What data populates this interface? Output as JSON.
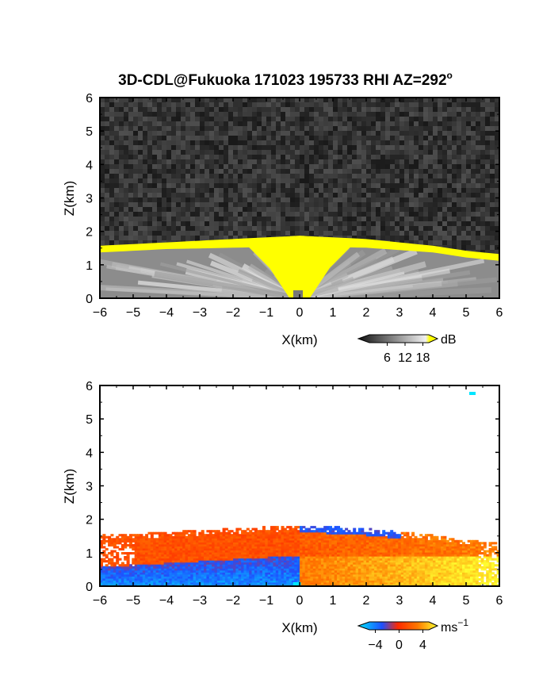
{
  "figure": {
    "title": "3D-CDL@Fukuoka 171023 195733 RHI AZ=292",
    "title_superscript": "o"
  },
  "chart_data": [
    {
      "type": "heatmap",
      "quantity": "backscatter intensity",
      "xlabel": "X(km)",
      "ylabel": "Z(km)",
      "xlim": [
        -6,
        6
      ],
      "ylim": [
        0,
        6
      ],
      "xticks": [
        -6,
        -5,
        -4,
        -3,
        -2,
        -1,
        0,
        1,
        2,
        3,
        4,
        5,
        6
      ],
      "yticks": [
        0,
        1,
        2,
        3,
        4,
        5,
        6
      ],
      "boundary_layer_top_km": [
        {
          "x": -6,
          "z": 1.55
        },
        {
          "x": -5,
          "z": 1.6
        },
        {
          "x": -4,
          "z": 1.65
        },
        {
          "x": -3,
          "z": 1.7
        },
        {
          "x": -2,
          "z": 1.75
        },
        {
          "x": -1,
          "z": 1.8
        },
        {
          "x": 0,
          "z": 1.85
        },
        {
          "x": 1,
          "z": 1.8
        },
        {
          "x": 2,
          "z": 1.75
        },
        {
          "x": 3,
          "z": 1.65
        },
        {
          "x": 4,
          "z": 1.55
        },
        {
          "x": 5,
          "z": 1.4
        },
        {
          "x": 6,
          "z": 1.3
        }
      ],
      "colorbar": {
        "unit": "dB",
        "ticks": [
          "6",
          "12",
          "18"
        ],
        "range": [
          0,
          20
        ],
        "colors": [
          "#111111",
          "#ffffff",
          "#ffff00"
        ]
      }
    },
    {
      "type": "heatmap",
      "quantity": "radial velocity",
      "xlabel": "X(km)",
      "ylabel": "Z(km)",
      "xlim": [
        -6,
        6
      ],
      "ylim": [
        0,
        6
      ],
      "xticks": [
        -6,
        -5,
        -4,
        -3,
        -2,
        -1,
        0,
        1,
        2,
        3,
        4,
        5,
        6
      ],
      "yticks": [
        0,
        1,
        2,
        3,
        4,
        5,
        6
      ],
      "colorbar": {
        "unit": "ms",
        "unit_superscript": "−1",
        "ticks": [
          "−4",
          "0",
          "4"
        ],
        "range": [
          -5,
          5
        ],
        "colors": [
          "#00e5ff",
          "#1e50ff",
          "#ff2a00",
          "#ffff30"
        ]
      }
    }
  ]
}
